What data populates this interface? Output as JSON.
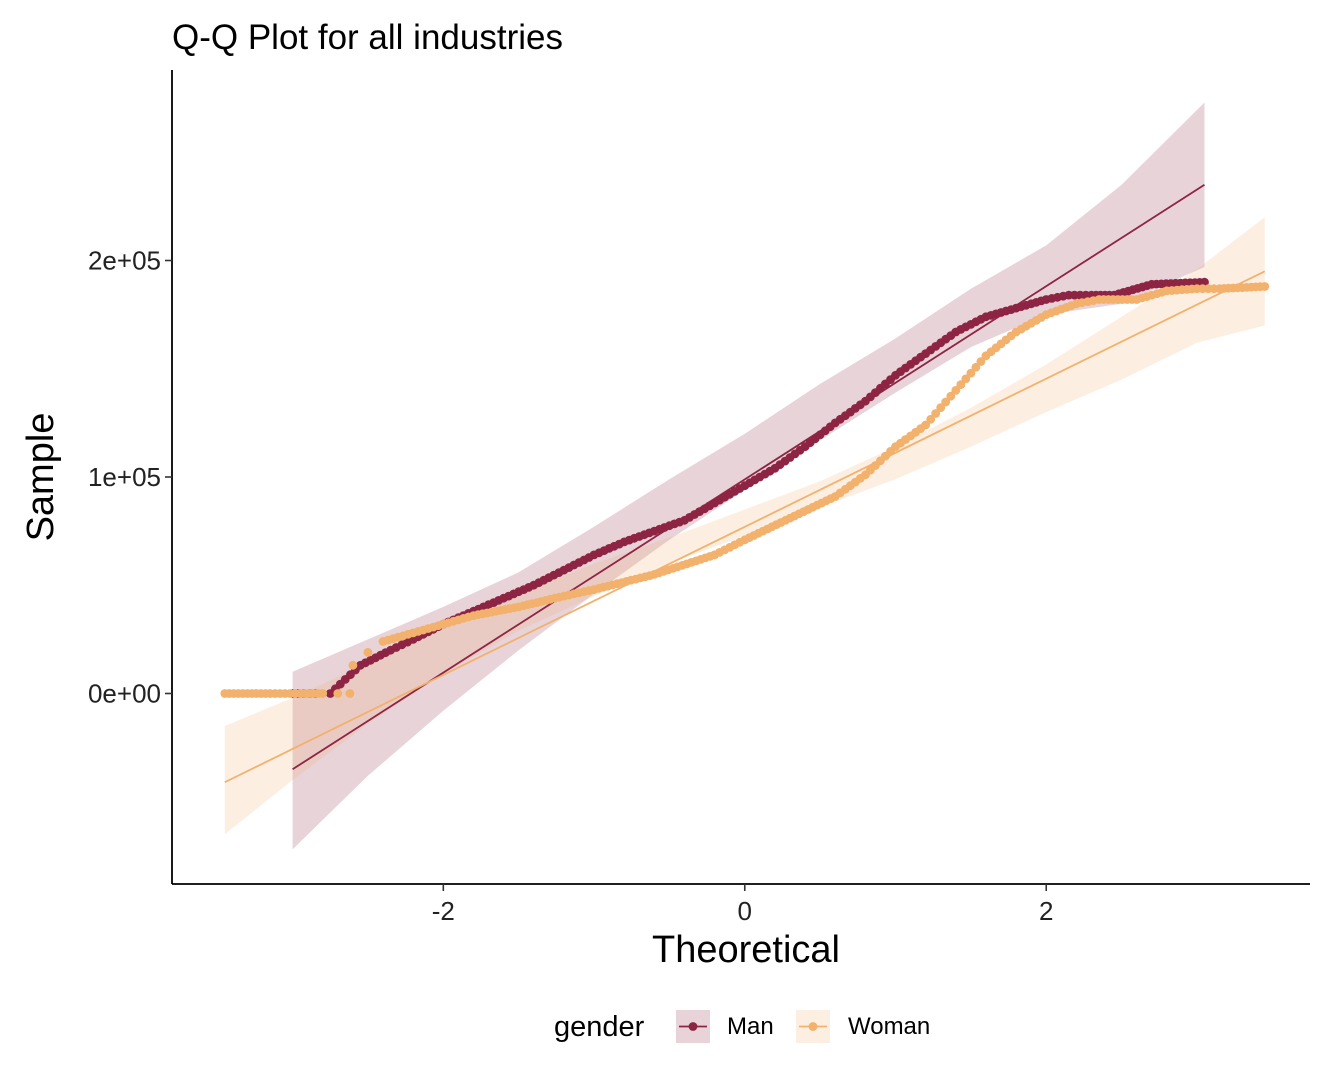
{
  "chart_data": {
    "type": "scatter",
    "title": "Q-Q Plot for all industries",
    "xlabel": "Theoretical",
    "ylabel": "Sample",
    "xlim": [
      -3.8,
      3.75
    ],
    "ylim": [
      -88000,
      288000
    ],
    "x_ticks": [
      -2,
      0,
      2
    ],
    "x_tick_labels": [
      "-2",
      "0",
      "2"
    ],
    "y_ticks": [
      0,
      100000,
      200000
    ],
    "y_tick_labels": [
      "0e+00",
      "1e+05",
      "2e+05"
    ],
    "grid": false,
    "legend": {
      "title": "gender",
      "position": "bottom"
    },
    "series": [
      {
        "name": "Man",
        "color": "#8e2443",
        "fit_line": {
          "x": [
            -3.0,
            3.05
          ],
          "y": [
            -35000,
            235000
          ]
        },
        "confidence_band": {
          "x": [
            -3.0,
            -2.5,
            -2.0,
            -1.5,
            -1.0,
            -0.5,
            0.0,
            0.5,
            1.0,
            1.5,
            2.0,
            2.5,
            3.05
          ],
          "lower": [
            -72000,
            -38000,
            -8000,
            20000,
            46000,
            71000,
            94000,
            117000,
            139000,
            160000,
            175000,
            180000,
            197000
          ],
          "upper": [
            10000,
            25000,
            40000,
            56000,
            77000,
            99000,
            120000,
            143000,
            164000,
            187000,
            207000,
            235000,
            273000
          ]
        },
        "points": {
          "x": [
            -3.0,
            -2.85,
            -2.75,
            -2.55,
            -2.35,
            -2.2,
            -2.0,
            -1.8,
            -1.6,
            -1.4,
            -1.2,
            -1.0,
            -0.8,
            -0.6,
            -0.4,
            -0.2,
            0.0,
            0.2,
            0.4,
            0.6,
            0.8,
            1.0,
            1.2,
            1.4,
            1.6,
            1.8,
            2.0,
            2.15,
            2.3,
            2.45,
            2.7,
            3.05
          ],
          "y": [
            0,
            0,
            0,
            13000,
            20000,
            25000,
            32000,
            38000,
            44000,
            50000,
            57000,
            64000,
            70000,
            75000,
            80000,
            88000,
            96000,
            104000,
            114000,
            125000,
            135000,
            147000,
            157000,
            167000,
            174000,
            178000,
            182000,
            184000,
            184000,
            184000,
            189000,
            190000
          ]
        }
      },
      {
        "name": "Woman",
        "color": "#f2b16d",
        "fit_line": {
          "x": [
            -3.45,
            3.45
          ],
          "y": [
            -41000,
            195000
          ]
        },
        "confidence_band": {
          "x": [
            -3.45,
            -3.0,
            -2.5,
            -2.0,
            -1.5,
            -1.0,
            -0.5,
            0.0,
            0.5,
            1.0,
            1.5,
            2.0,
            2.5,
            3.0,
            3.45
          ],
          "lower": [
            -65000,
            -40000,
            -14000,
            9000,
            29000,
            45000,
            60000,
            73000,
            86000,
            99000,
            114000,
            130000,
            145000,
            162000,
            170000
          ],
          "upper": [
            -15000,
            -2000,
            14000,
            31000,
            46000,
            60000,
            72000,
            85000,
            98000,
            114000,
            132000,
            152000,
            174000,
            196000,
            220000
          ]
        },
        "points": {
          "x": [
            -3.45,
            -3.15,
            -2.95,
            -2.8,
            -2.7,
            -2.62,
            -2.6,
            -2.5,
            -2.4,
            -2.2,
            -2.0,
            -1.8,
            -1.5,
            -1.2,
            -1.0,
            -0.6,
            -0.2,
            0.0,
            0.3,
            0.6,
            0.8,
            1.0,
            1.2,
            1.4,
            1.6,
            1.8,
            2.0,
            2.2,
            2.35,
            2.6,
            2.8,
            3.0,
            3.15,
            3.45
          ],
          "y": [
            0,
            0,
            0,
            0,
            0,
            0,
            13000,
            19000,
            24000,
            28000,
            32000,
            36000,
            40000,
            45000,
            48000,
            55000,
            64000,
            71000,
            81000,
            91000,
            101000,
            114000,
            124000,
            140000,
            156000,
            167000,
            175000,
            180000,
            182000,
            182000,
            186000,
            187000,
            187000,
            188000
          ]
        }
      }
    ]
  }
}
